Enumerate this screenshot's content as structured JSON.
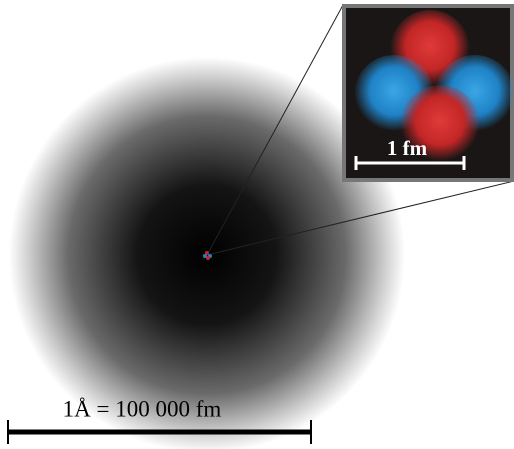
{
  "inset": {
    "scale_label": "1 fm"
  },
  "scale_bar": {
    "label": "1Å = 100 000 fm"
  }
}
